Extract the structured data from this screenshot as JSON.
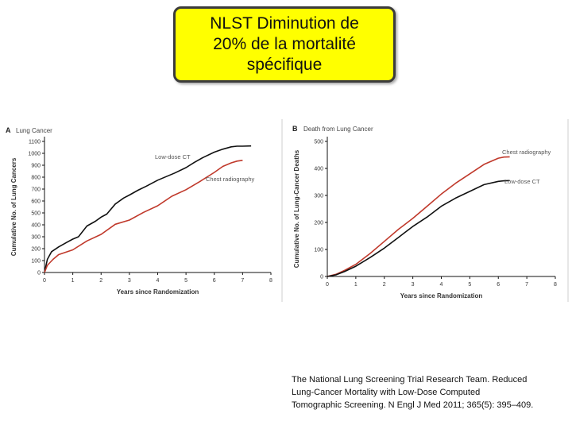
{
  "title_box": {
    "lines": "NLST Diminution de\n20% de la mortalité\nspécifique"
  },
  "chart_data": [
    {
      "type": "line",
      "panel_label": "A",
      "title": "Lung Cancer",
      "xlabel": "Years since Randomization",
      "ylabel": "Cumulative No. of Lung Cancers",
      "xlim": [
        0,
        8
      ],
      "ylim": [
        0,
        1100
      ],
      "xticks": [
        0,
        1,
        2,
        3,
        4,
        5,
        6,
        7,
        8
      ],
      "yticks": [
        0,
        100,
        200,
        300,
        400,
        500,
        600,
        700,
        800,
        900,
        1000,
        1100
      ],
      "series": [
        {
          "name": "Low-dose CT",
          "color": "#111111",
          "x": [
            0,
            0.1,
            0.25,
            0.5,
            0.8,
            1.0,
            1.2,
            1.5,
            1.8,
            2.0,
            2.2,
            2.5,
            2.8,
            3.0,
            3.3,
            3.6,
            4.0,
            4.3,
            4.6,
            5.0,
            5.3,
            5.6,
            6.0,
            6.3,
            6.6,
            6.8,
            7.0,
            7.3
          ],
          "y": [
            0,
            110,
            175,
            215,
            255,
            280,
            300,
            390,
            430,
            465,
            490,
            575,
            625,
            650,
            690,
            725,
            775,
            805,
            835,
            880,
            925,
            965,
            1010,
            1035,
            1055,
            1060,
            1060,
            1062
          ]
        },
        {
          "name": "Chest radiography",
          "color": "#c0392b",
          "x": [
            0,
            0.1,
            0.3,
            0.5,
            1.0,
            1.5,
            2.0,
            2.5,
            3.0,
            3.5,
            4.0,
            4.5,
            5.0,
            5.5,
            6.0,
            6.3,
            6.6,
            6.8,
            7.0
          ],
          "y": [
            0,
            60,
            110,
            150,
            190,
            265,
            320,
            405,
            440,
            505,
            560,
            640,
            695,
            765,
            840,
            890,
            920,
            935,
            941
          ]
        }
      ]
    },
    {
      "type": "line",
      "panel_label": "B",
      "title": "Death from Lung Cancer",
      "xlabel": "Years since Randomization",
      "ylabel": "Cumulative No. of Lung-Cancer Deaths",
      "xlim": [
        0,
        8
      ],
      "ylim": [
        0,
        500
      ],
      "xticks": [
        0,
        1,
        2,
        3,
        4,
        5,
        6,
        7,
        8
      ],
      "yticks": [
        0,
        100,
        200,
        300,
        400,
        500
      ],
      "series": [
        {
          "name": "Chest radiography",
          "color": "#c0392b",
          "x": [
            0,
            0.3,
            0.6,
            1.0,
            1.5,
            2.0,
            2.5,
            3.0,
            3.5,
            4.0,
            4.5,
            5.0,
            5.5,
            6.0,
            6.2,
            6.4
          ],
          "y": [
            0,
            8,
            22,
            45,
            85,
            130,
            175,
            215,
            260,
            305,
            345,
            380,
            415,
            438,
            442,
            443
          ]
        },
        {
          "name": "Low-dose CT",
          "color": "#111111",
          "x": [
            0,
            0.3,
            0.6,
            1.0,
            1.5,
            2.0,
            2.5,
            3.0,
            3.5,
            4.0,
            4.5,
            5.0,
            5.5,
            6.0,
            6.2,
            6.4
          ],
          "y": [
            0,
            6,
            18,
            38,
            70,
            105,
            145,
            185,
            220,
            260,
            290,
            315,
            340,
            352,
            354,
            355
          ]
        }
      ]
    }
  ],
  "citation": {
    "line1": "The National Lung Screening Trial Research Team. Reduced",
    "line2": "Lung-Cancer Mortality with Low-Dose Computed",
    "line3": "Tomographic Screening. N Engl J Med 2011; 365(5): 395–409."
  },
  "colors": {
    "title_fill": "#ffff00",
    "title_border": "#3b3b3b",
    "axis": "#111111",
    "axis_text": "#333333",
    "low_dose_ct": "#111111",
    "chest_radiography": "#c0392b"
  }
}
